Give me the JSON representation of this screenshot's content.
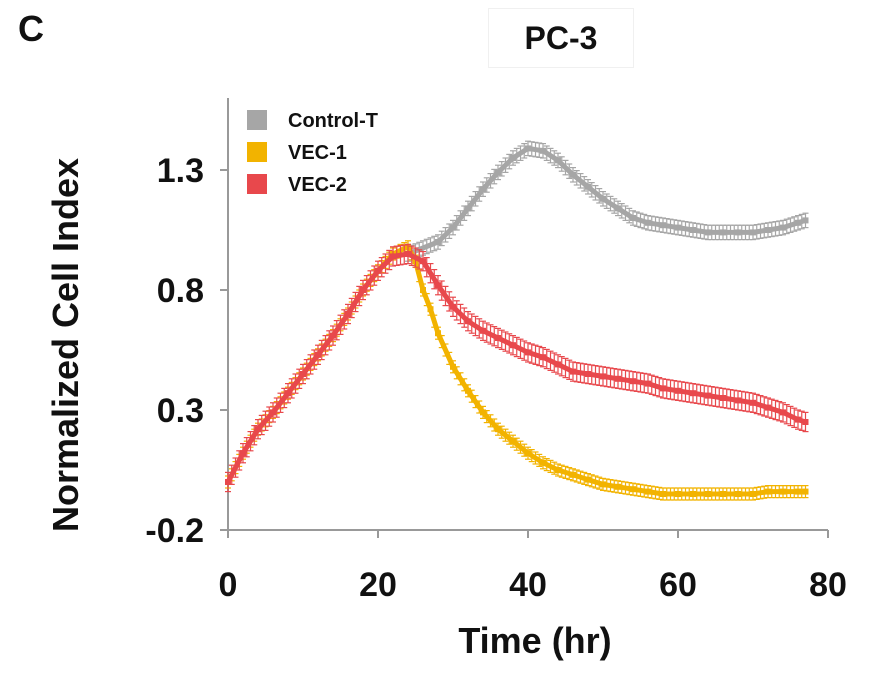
{
  "panel_letter": "C",
  "chart_data": {
    "type": "line",
    "title": "PC-3",
    "xlabel": "Time (hr)",
    "ylabel": "Normalized Cell Index",
    "xlim": [
      0,
      80
    ],
    "ylim": [
      -0.2,
      1.6
    ],
    "xticks": [
      0,
      20,
      40,
      60,
      80
    ],
    "yticks": [
      -0.2,
      0.3,
      0.8,
      1.3
    ],
    "xtick_labels": [
      "0",
      "20",
      "40",
      "60",
      "80"
    ],
    "ytick_labels": [
      "-0.2",
      "0.3",
      "0.8",
      "1.3"
    ],
    "legend_position": "top-left",
    "series": [
      {
        "name": "Control-T",
        "color": "#a6a6a6",
        "x": [
          24,
          28,
          30,
          32,
          34,
          36,
          38,
          40,
          42,
          44,
          46,
          48,
          50,
          52,
          54,
          56,
          58,
          60,
          62,
          64,
          66,
          68,
          70,
          72,
          74,
          76,
          77
        ],
        "y": [
          0.95,
          1.0,
          1.06,
          1.14,
          1.22,
          1.29,
          1.35,
          1.39,
          1.38,
          1.34,
          1.28,
          1.23,
          1.18,
          1.14,
          1.1,
          1.08,
          1.07,
          1.06,
          1.05,
          1.04,
          1.04,
          1.04,
          1.04,
          1.05,
          1.06,
          1.08,
          1.09
        ],
        "error": 0.03
      },
      {
        "name": "VEC-1",
        "color": "#f2b300",
        "x": [
          0,
          2,
          4,
          6,
          8,
          10,
          12,
          14,
          16,
          18,
          20,
          22,
          24,
          25,
          26,
          27,
          28,
          30,
          32,
          34,
          36,
          38,
          40,
          42,
          44,
          46,
          48,
          50,
          52,
          54,
          56,
          58,
          60,
          62,
          64,
          66,
          68,
          70,
          72,
          74,
          76,
          77
        ],
        "y": [
          0.0,
          0.12,
          0.22,
          0.29,
          0.37,
          0.45,
          0.53,
          0.61,
          0.7,
          0.8,
          0.88,
          0.95,
          0.98,
          0.92,
          0.8,
          0.72,
          0.62,
          0.48,
          0.38,
          0.29,
          0.22,
          0.17,
          0.12,
          0.08,
          0.05,
          0.03,
          0.01,
          -0.01,
          -0.02,
          -0.03,
          -0.04,
          -0.05,
          -0.05,
          -0.05,
          -0.05,
          -0.05,
          -0.05,
          -0.05,
          -0.04,
          -0.04,
          -0.04,
          -0.04
        ],
        "error": 0.025
      },
      {
        "name": "VEC-2",
        "color": "#e8484c",
        "x": [
          0,
          2,
          4,
          6,
          8,
          10,
          12,
          14,
          16,
          18,
          20,
          22,
          24,
          26,
          28,
          30,
          32,
          34,
          36,
          38,
          40,
          42,
          44,
          46,
          48,
          50,
          52,
          54,
          56,
          58,
          60,
          62,
          64,
          66,
          68,
          70,
          72,
          74,
          76,
          77
        ],
        "y": [
          0.0,
          0.12,
          0.22,
          0.29,
          0.37,
          0.45,
          0.53,
          0.61,
          0.7,
          0.8,
          0.88,
          0.94,
          0.95,
          0.92,
          0.82,
          0.73,
          0.67,
          0.63,
          0.6,
          0.57,
          0.54,
          0.52,
          0.49,
          0.46,
          0.45,
          0.44,
          0.43,
          0.42,
          0.41,
          0.39,
          0.38,
          0.37,
          0.36,
          0.35,
          0.34,
          0.33,
          0.31,
          0.29,
          0.26,
          0.25
        ],
        "error": 0.04
      }
    ]
  }
}
